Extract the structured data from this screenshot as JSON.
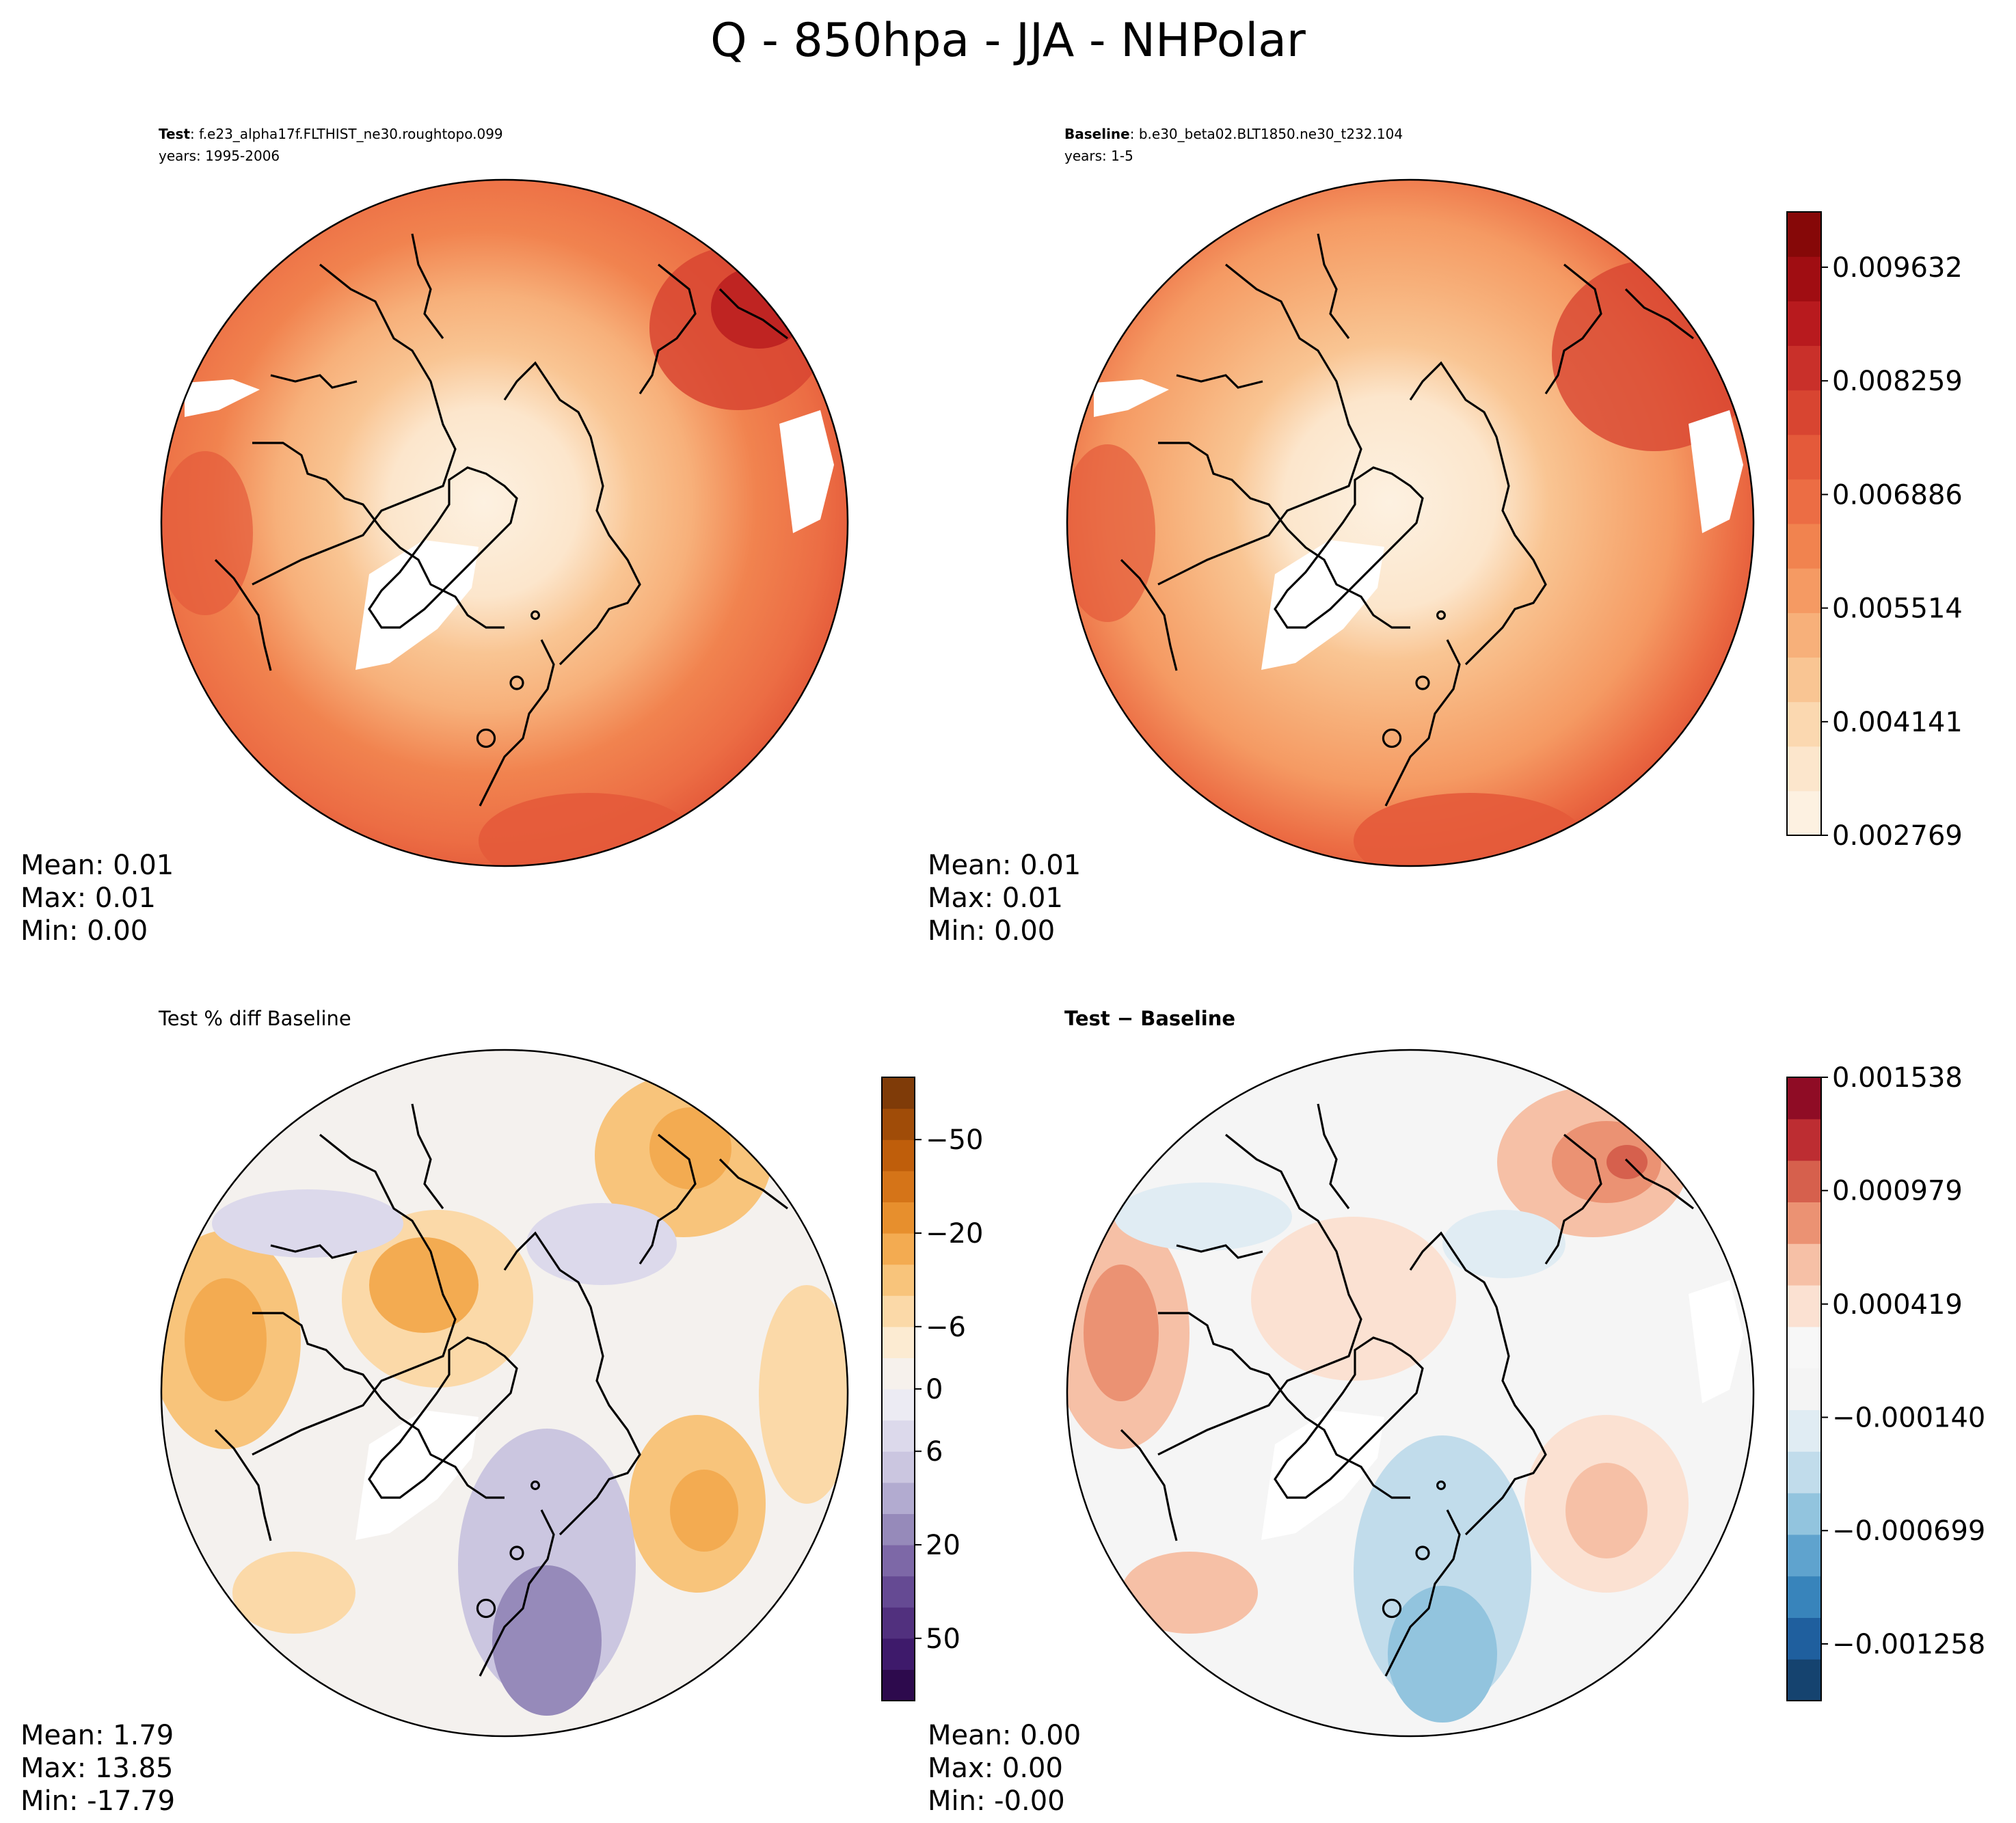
{
  "figure_title": "Q - 850hpa - JJA - NHPolar",
  "chart_data": [
    {
      "type": "contour-map",
      "projection": "north-polar-stereographic",
      "panel_label_bold": "Test",
      "panel_label_text": ": f.e23_alpha17f.FLTHIST_ne30.roughtopo.099",
      "years": "years: 1995-2006",
      "stats": {
        "mean": "Mean:  0.01",
        "max": "Max:  0.01",
        "min": "Min:  0.00"
      },
      "colormap": "OrRd",
      "shared_colorbar": true
    },
    {
      "type": "contour-map",
      "projection": "north-polar-stereographic",
      "panel_label_bold": "Baseline",
      "panel_label_text": ": b.e30_beta02.BLT1850.ne30_t232.104",
      "years": "years: 1-5",
      "stats": {
        "mean": "Mean:  0.01",
        "max": "Max:  0.01",
        "min": "Min:  0.00"
      },
      "colormap": "OrRd",
      "colorbar": {
        "ticks": [
          "0.009632",
          "0.008259",
          "0.006886",
          "0.005514",
          "0.004141",
          "0.002769"
        ],
        "tick_values": [
          0.009632,
          0.008259,
          0.006886,
          0.005514,
          0.004141,
          0.002769
        ],
        "range": [
          0.002769,
          0.0103
        ],
        "colors": [
          "#fdf1e1",
          "#fce6cc",
          "#fbd8b0",
          "#f9c593",
          "#f7b07a",
          "#f59a63",
          "#f1834f",
          "#ec6d44",
          "#e45a3a",
          "#d84531",
          "#c9302a",
          "#b81a1e",
          "#a00d12",
          "#860808"
        ]
      }
    },
    {
      "type": "contour-map",
      "projection": "north-polar-stereographic",
      "panel_title": "Test % diff Baseline",
      "stats": {
        "mean": "Mean:  1.79",
        "max": "Max: 13.85",
        "min": "Min: -17.79"
      },
      "colormap": "PuOr_r",
      "colorbar": {
        "ticks": [
          "50",
          "20",
          "6",
          "0",
          "−6",
          "−20",
          "−50"
        ],
        "colors": [
          "#2d0a4d",
          "#3e1a6b",
          "#51307e",
          "#654a93",
          "#7d68a7",
          "#968aba",
          "#b2abd0",
          "#cbc6e0",
          "#dcd9eb",
          "#ecebf3",
          "#f6f1ec",
          "#fcebd2",
          "#fbd9a8",
          "#f8c47b",
          "#f3ab51",
          "#e78f2d",
          "#d57418",
          "#bf5e0b",
          "#a04c08",
          "#7f3b08"
        ]
      }
    },
    {
      "type": "contour-map",
      "projection": "north-polar-stereographic",
      "panel_title_bold": "Test − Baseline",
      "stats": {
        "mean": "Mean:  0.00",
        "max": "Max:  0.00",
        "min": "Min: -0.00"
      },
      "colormap": "RdBu_r",
      "colorbar": {
        "ticks": [
          "0.001538",
          "0.000979",
          "0.000419",
          "−0.000140",
          "−0.000699",
          "−0.001258"
        ],
        "tick_values": [
          0.001538,
          0.000979,
          0.000419,
          -0.00014,
          -0.000699,
          -0.001258
        ],
        "range": [
          -0.001538,
          0.001538
        ],
        "colors": [
          "#15436f",
          "#1f5f9e",
          "#3884bb",
          "#5fa3ce",
          "#92c4de",
          "#c1dceb",
          "#e0ecf3",
          "#f4f4f4",
          "#f7f7f7",
          "#fbe1d2",
          "#f6c0a6",
          "#eb9273",
          "#d6604d",
          "#bd2d32",
          "#8f0c25"
        ]
      }
    }
  ]
}
